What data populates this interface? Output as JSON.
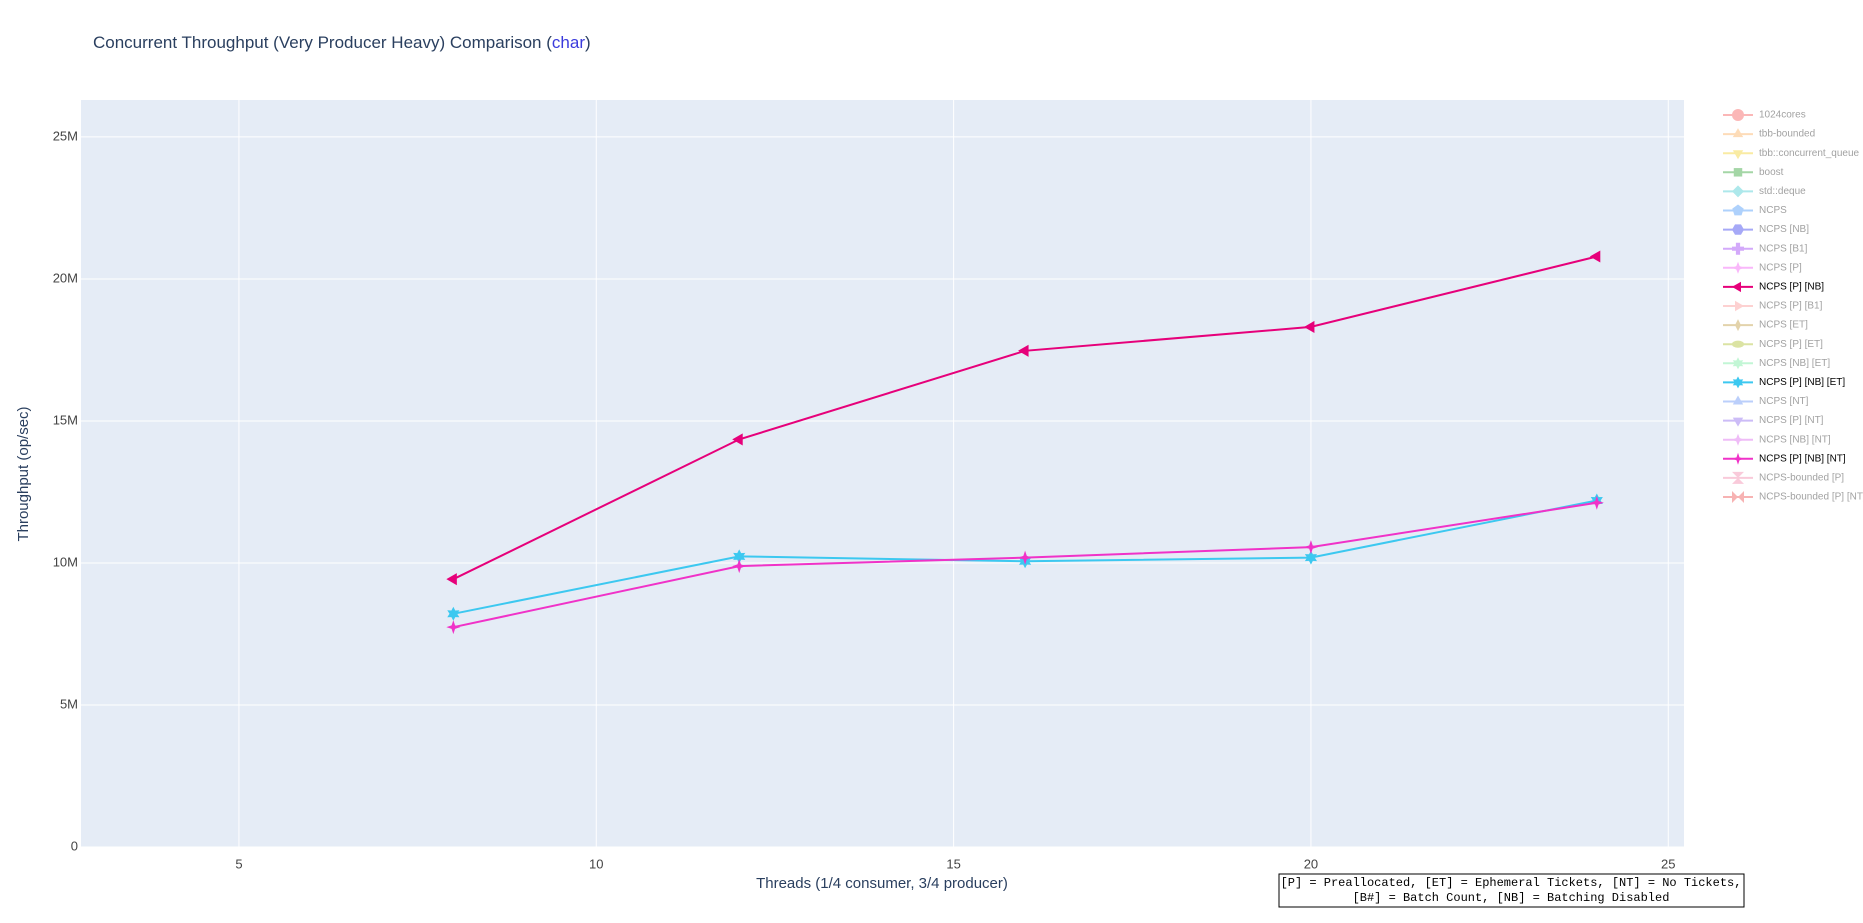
{
  "chart_data": {
    "type": "line",
    "title_parts": [
      "Concurrent Throughput (Very Producer Heavy) Comparison (",
      "char",
      ")"
    ],
    "x_label": "Threads (1/4 consumer, 3/4 producer)",
    "y_label": "Throughput (op/sec)",
    "xlim": [
      2.79,
      25.22
    ],
    "ylim": [
      0,
      26300000
    ],
    "xticks": [
      5,
      10,
      15,
      20,
      25
    ],
    "yticks": [
      0,
      {
        "value": 5000000,
        "label": "5M"
      },
      {
        "value": 10000000,
        "label": "10M"
      },
      {
        "value": 15000000,
        "label": "15M"
      },
      {
        "value": 20000000,
        "label": "20M"
      },
      {
        "value": 25000000,
        "label": "25M"
      }
    ],
    "grid": true,
    "legend_position": "right",
    "x": [
      8,
      12,
      16,
      20,
      24
    ],
    "series": [
      {
        "name": "1024cores",
        "color": "#f87171",
        "symbol": "circle",
        "visible": false
      },
      {
        "name": "tbb-bounded",
        "color": "#fdba74",
        "symbol": "triangle-up",
        "visible": false
      },
      {
        "name": "tbb::concurrent_queue",
        "color": "#f5d94a",
        "symbol": "triangle-down",
        "visible": false
      },
      {
        "name": "boost",
        "color": "#4caf50",
        "symbol": "square",
        "visible": false
      },
      {
        "name": "std::deque",
        "color": "#5ed3d8",
        "symbol": "diamond",
        "visible": false
      },
      {
        "name": "NCPS",
        "color": "#60a5fa",
        "symbol": "pentagon",
        "visible": false
      },
      {
        "name": "NCPS [NB]",
        "color": "#4f55f0",
        "symbol": "hexagon",
        "visible": false
      },
      {
        "name": "NCPS [B1]",
        "color": "#a855f7",
        "symbol": "cross",
        "visible": false
      },
      {
        "name": "NCPS [P]",
        "color": "#f472f6",
        "symbol": "x",
        "visible": false
      },
      {
        "name": "NCPS [P] [NB]",
        "color": "#e6007a",
        "symbol": "triangle-left",
        "visible": true,
        "values": [
          9430000,
          14350000,
          17470000,
          18310000,
          20790000
        ]
      },
      {
        "name": "NCPS [P] [B1]",
        "color": "#fca5a5",
        "symbol": "triangle-right",
        "visible": false
      },
      {
        "name": "NCPS [ET]",
        "color": "#c9a85a",
        "symbol": "thin-diamond",
        "visible": false
      },
      {
        "name": "NCPS [P] [ET]",
        "color": "#b8c94a",
        "symbol": "ellipse",
        "visible": false
      },
      {
        "name": "NCPS [NB] [ET]",
        "color": "#86efac",
        "symbol": "star",
        "visible": false
      },
      {
        "name": "NCPS [P] [NB] [ET]",
        "color": "#3cc8f0",
        "symbol": "star",
        "visible": true,
        "values": [
          8210000,
          10230000,
          10060000,
          10190000,
          12200000
        ]
      },
      {
        "name": "NCPS [NT]",
        "color": "#7aa0f8",
        "symbol": "triangle-up",
        "visible": false
      },
      {
        "name": "NCPS [P] [NT]",
        "color": "#9b7cf0",
        "symbol": "triangle-down",
        "visible": false
      },
      {
        "name": "NCPS [NB] [NT]",
        "color": "#e07cf0",
        "symbol": "x",
        "visible": false
      },
      {
        "name": "NCPS [P] [NB] [NT]",
        "color": "#f032c8",
        "symbol": "sparkle",
        "visible": true,
        "values": [
          7740000,
          9890000,
          10190000,
          10560000,
          12120000
        ]
      },
      {
        "name": "NCPS-bounded [P]",
        "color": "#f497b6",
        "symbol": "hourglass",
        "visible": false
      },
      {
        "name": "NCPS-bounded [P] [NT]",
        "color": "#f06a6a",
        "symbol": "bowtie",
        "visible": false
      }
    ],
    "annotation": [
      "[P] = Preallocated, [ET] = Ephemeral Tickets, [NT] = No Tickets,",
      "[B#] = Batch Count, [NB] = Batching Disabled"
    ]
  }
}
